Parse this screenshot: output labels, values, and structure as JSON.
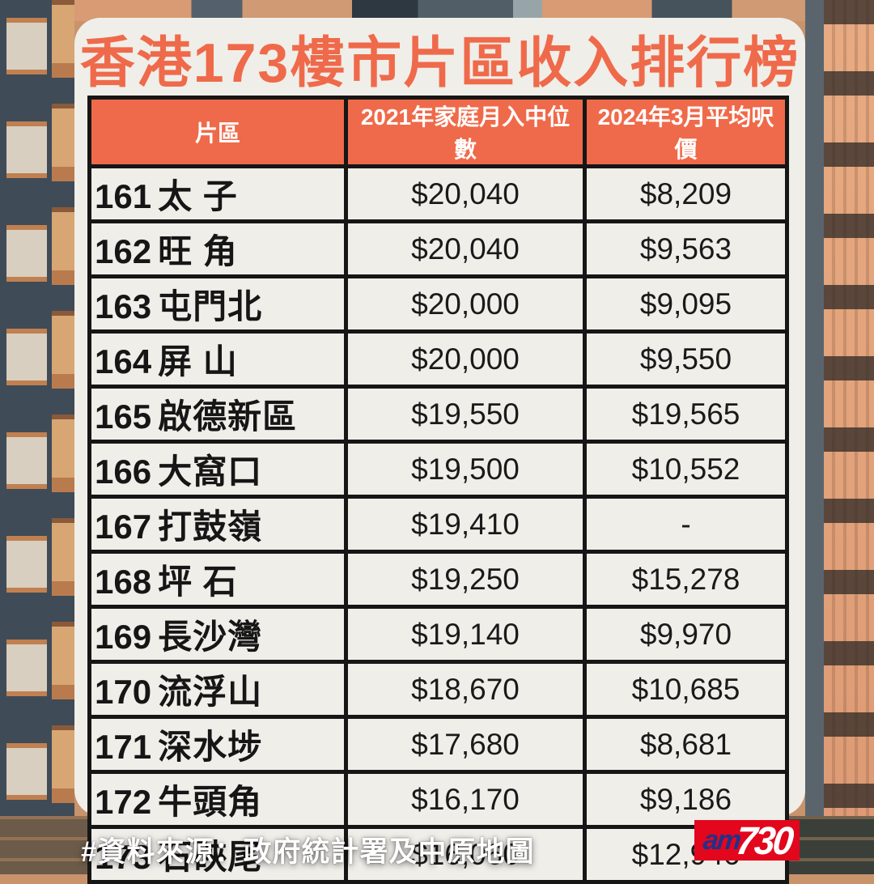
{
  "title": "香港173樓市片區收入排行榜",
  "table": {
    "columns": [
      "片區",
      "2021年家庭月入中位數",
      "2024年3月平均呎價"
    ],
    "rows": [
      {
        "rank": "161",
        "district": "太 子",
        "income": "$20,040",
        "price": "$8,209"
      },
      {
        "rank": "162",
        "district": "旺 角",
        "income": "$20,040",
        "price": "$9,563"
      },
      {
        "rank": "163",
        "district": "屯門北",
        "income": "$20,000",
        "price": "$9,095"
      },
      {
        "rank": "164",
        "district": "屏 山",
        "income": "$20,000",
        "price": "$9,550"
      },
      {
        "rank": "165",
        "district": "啟德新區",
        "income": "$19,550",
        "price": "$19,565"
      },
      {
        "rank": "166",
        "district": "大窩口",
        "income": "$19,500",
        "price": "$10,552"
      },
      {
        "rank": "167",
        "district": "打鼓嶺",
        "income": "$19,410",
        "price": "-"
      },
      {
        "rank": "168",
        "district": "坪 石",
        "income": "$19,250",
        "price": "$15,278"
      },
      {
        "rank": "169",
        "district": "長沙灣",
        "income": "$19,140",
        "price": "$9,970"
      },
      {
        "rank": "170",
        "district": "流浮山",
        "income": "$18,670",
        "price": "$10,685"
      },
      {
        "rank": "171",
        "district": "深水埗",
        "income": "$17,680",
        "price": "$8,681"
      },
      {
        "rank": "172",
        "district": "牛頭角",
        "income": "$16,170",
        "price": "$9,186"
      },
      {
        "rank": "173",
        "district": "石硤尾",
        "income": "$16,060",
        "price": "$12,946"
      }
    ]
  },
  "chart_data": {
    "type": "table",
    "title": "香港173樓市片區收入排行榜",
    "columns": [
      "片區",
      "2021年家庭月入中位數",
      "2024年3月平均呎價"
    ],
    "ranks": [
      161,
      162,
      163,
      164,
      165,
      166,
      167,
      168,
      169,
      170,
      171,
      172,
      173
    ],
    "districts": [
      "太子",
      "旺角",
      "屯門北",
      "屏山",
      "啟德新區",
      "大窩口",
      "打鼓嶺",
      "坪石",
      "長沙灣",
      "流浮山",
      "深水埗",
      "牛頭角",
      "石硤尾"
    ],
    "median_monthly_income_2021": [
      20040,
      20040,
      20000,
      20000,
      19550,
      19500,
      19410,
      19250,
      19140,
      18670,
      17680,
      16170,
      16060
    ],
    "avg_price_per_sqft_2024_03": [
      8209,
      9563,
      9095,
      9550,
      19565,
      10552,
      null,
      15278,
      9970,
      10685,
      8681,
      9186,
      12946
    ]
  },
  "footer": {
    "source": "#資料來源：政府統計署及中原地圖"
  },
  "logo": {
    "am": "am",
    "number": "730"
  },
  "colors": {
    "accent_orange": "#ef6a4a",
    "card_bg": "#f0eee9",
    "table_border": "#161616",
    "header_text": "#ffffff",
    "logo_red": "#e2071c",
    "logo_blue": "#233089"
  }
}
